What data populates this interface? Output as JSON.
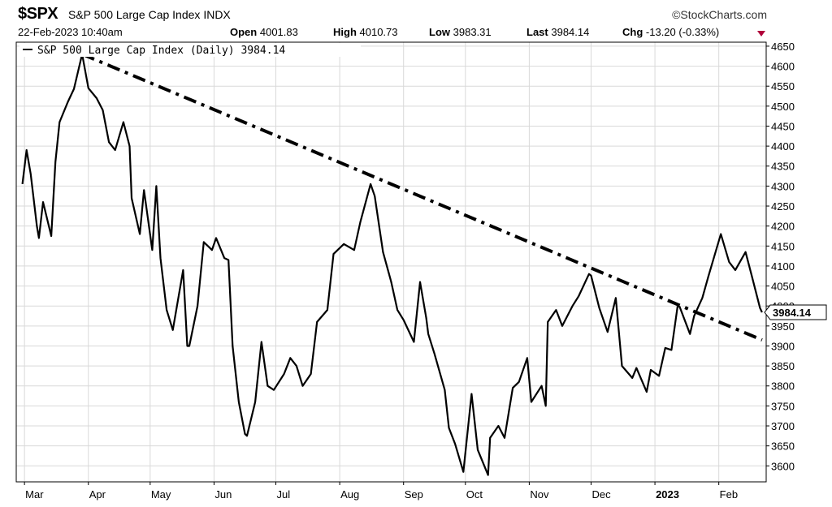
{
  "header": {
    "symbol": "$SPX",
    "name": "S&P 500 Large Cap Index",
    "exchange": "INDX",
    "copyright": "©StockCharts.com",
    "datetime": "22-Feb-2023 10:40am",
    "open_label": "Open",
    "open": "4001.83",
    "high_label": "High",
    "high": "4010.73",
    "low_label": "Low",
    "low": "3983.31",
    "last_label": "Last",
    "last": "3984.14",
    "chg_label": "Chg",
    "chg": "-13.20 (-0.33%)"
  },
  "chart_data": {
    "type": "line",
    "title": "S&P 500 Large Cap Index (Daily) 3984.14",
    "series": [
      {
        "name": "S&P 500 Large Cap Index (Daily) 3984.14",
        "x": [
          "2022-02-28",
          "2022-03-02",
          "2022-03-04",
          "2022-03-07",
          "2022-03-08",
          "2022-03-10",
          "2022-03-14",
          "2022-03-16",
          "2022-03-18",
          "2022-03-22",
          "2022-03-25",
          "2022-03-29",
          "2022-04-01",
          "2022-04-05",
          "2022-04-08",
          "2022-04-11",
          "2022-04-14",
          "2022-04-18",
          "2022-04-21",
          "2022-04-22",
          "2022-04-26",
          "2022-04-28",
          "2022-05-02",
          "2022-05-04",
          "2022-05-06",
          "2022-05-09",
          "2022-05-12",
          "2022-05-17",
          "2022-05-19",
          "2022-05-20",
          "2022-05-24",
          "2022-05-27",
          "2022-05-31",
          "2022-06-02",
          "2022-06-06",
          "2022-06-08",
          "2022-06-10",
          "2022-06-13",
          "2022-06-16",
          "2022-06-17",
          "2022-06-21",
          "2022-06-24",
          "2022-06-27",
          "2022-06-30",
          "2022-07-05",
          "2022-07-08",
          "2022-07-11",
          "2022-07-14",
          "2022-07-18",
          "2022-07-21",
          "2022-07-26",
          "2022-07-29",
          "2022-08-03",
          "2022-08-08",
          "2022-08-11",
          "2022-08-16",
          "2022-08-18",
          "2022-08-22",
          "2022-08-26",
          "2022-08-29",
          "2022-09-01",
          "2022-09-06",
          "2022-09-09",
          "2022-09-12",
          "2022-09-13",
          "2022-09-16",
          "2022-09-21",
          "2022-09-23",
          "2022-09-26",
          "2022-09-30",
          "2022-10-04",
          "2022-10-07",
          "2022-10-12",
          "2022-10-13",
          "2022-10-17",
          "2022-10-20",
          "2022-10-24",
          "2022-10-27",
          "2022-10-31",
          "2022-11-02",
          "2022-11-07",
          "2022-11-09",
          "2022-11-10",
          "2022-11-14",
          "2022-11-17",
          "2022-11-22",
          "2022-11-25",
          "2022-11-30",
          "2022-12-01",
          "2022-12-05",
          "2022-12-09",
          "2022-12-13",
          "2022-12-16",
          "2022-12-21",
          "2022-12-23",
          "2022-12-28",
          "2022-12-30",
          "2023-01-03",
          "2023-01-06",
          "2023-01-09",
          "2023-01-12",
          "2023-01-13",
          "2023-01-18",
          "2023-01-20",
          "2023-01-24",
          "2023-01-27",
          "2023-02-02",
          "2023-02-06",
          "2023-02-09",
          "2023-02-14",
          "2023-02-17",
          "2023-02-21",
          "2023-02-22"
        ],
        "y": [
          4305,
          4390,
          4330,
          4200,
          4170,
          4260,
          4175,
          4360,
          4460,
          4510,
          4543,
          4630,
          4545,
          4520,
          4490,
          4410,
          4390,
          4460,
          4400,
          4270,
          4180,
          4290,
          4140,
          4300,
          4120,
          3990,
          3940,
          4090,
          3900,
          3900,
          4000,
          4160,
          4140,
          4170,
          4120,
          4115,
          3900,
          3760,
          3680,
          3675,
          3760,
          3910,
          3800,
          3790,
          3830,
          3870,
          3850,
          3800,
          3830,
          3960,
          3990,
          4130,
          4155,
          4140,
          4210,
          4305,
          4275,
          4135,
          4060,
          3990,
          3965,
          3910,
          4060,
          3970,
          3930,
          3880,
          3790,
          3695,
          3655,
          3585,
          3780,
          3640,
          3577,
          3670,
          3700,
          3670,
          3795,
          3810,
          3870,
          3760,
          3800,
          3750,
          3960,
          3990,
          3950,
          4000,
          4025,
          4080,
          4076,
          3995,
          3935,
          4020,
          3850,
          3820,
          3845,
          3785,
          3840,
          3825,
          3895,
          3890,
          4000,
          3998,
          3930,
          3975,
          4020,
          4075,
          4180,
          4110,
          4090,
          4135,
          4075,
          3995,
          3984.14
        ]
      }
    ],
    "trendline": {
      "style": "dash-dot",
      "from": [
        "2022-03-29",
        4630
      ],
      "to": [
        "2023-02-22",
        3915
      ]
    },
    "xlabels": [
      "Mar",
      "Apr",
      "May",
      "Jun",
      "Jul",
      "Aug",
      "Sep",
      "Oct",
      "Nov",
      "Dec",
      "2023",
      "Feb"
    ],
    "xlabel_dates": [
      "2022-03-01",
      "2022-04-01",
      "2022-05-01",
      "2022-06-01",
      "2022-07-01",
      "2022-08-01",
      "2022-09-01",
      "2022-10-01",
      "2022-11-01",
      "2022-12-01",
      "2023-01-01",
      "2023-02-01"
    ],
    "bold_xlabels": [
      "2023"
    ],
    "yticks": [
      3600,
      3650,
      3700,
      3750,
      3800,
      3850,
      3900,
      3950,
      4000,
      4050,
      4100,
      4150,
      4200,
      4250,
      4300,
      4350,
      4400,
      4450,
      4500,
      4550,
      4600,
      4650
    ],
    "ylim": [
      3560,
      4660
    ],
    "xlim": [
      "2022-02-25",
      "2023-02-24"
    ],
    "last_value_label": "3984.14",
    "grid": true,
    "legend_position": "top-left",
    "line_color": "#000000",
    "grid_color": "#d9d9d9"
  }
}
